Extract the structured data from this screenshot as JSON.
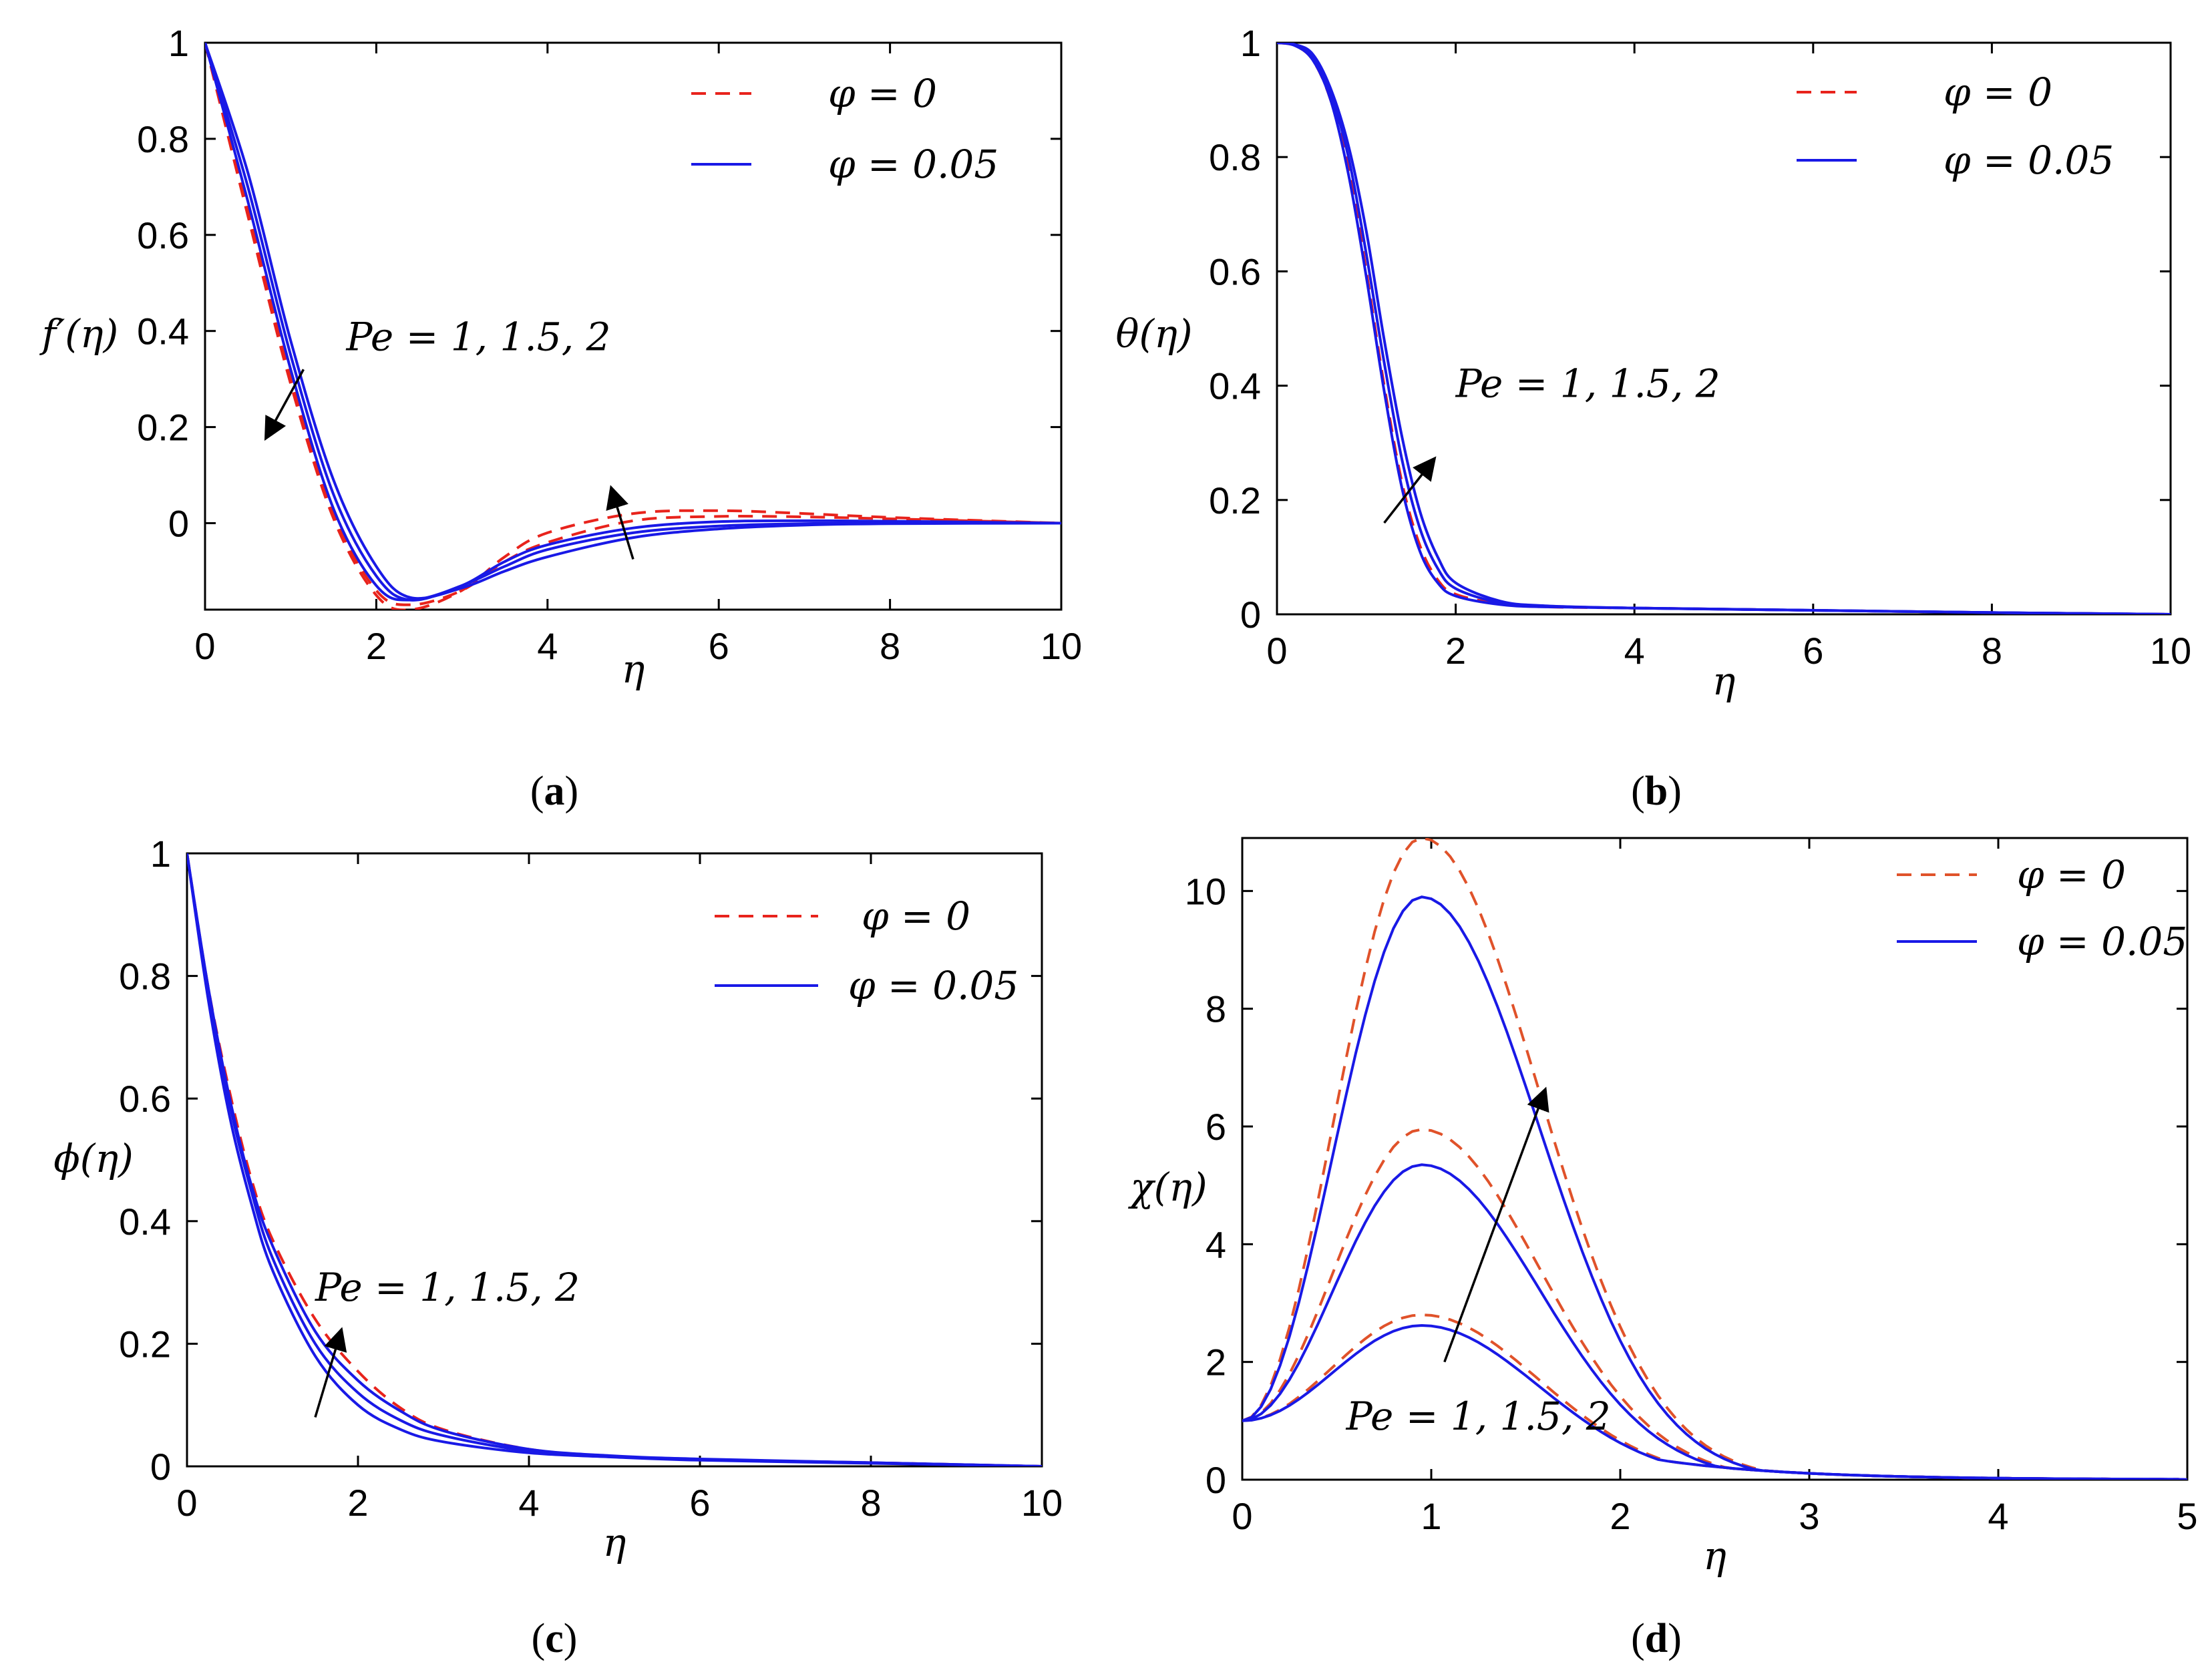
{
  "colors": {
    "red": "#e8231c",
    "orange": "#e0522a",
    "blue": "#1919e6",
    "black": "#000000"
  },
  "chart_data": [
    {
      "id": "a",
      "type": "line",
      "panel_label": [
        "(",
        "a",
        ")"
      ],
      "xlabel": "η",
      "ylabel": "f′(η)",
      "xlim": [
        0,
        10
      ],
      "ylim": [
        -0.18,
        1
      ],
      "xticks": [
        0,
        2,
        4,
        6,
        8,
        10
      ],
      "yticks": [
        0,
        0.2,
        0.4,
        0.6,
        0.8,
        1
      ],
      "xtick_labels": [
        "0",
        "2",
        "4",
        "6",
        "8",
        "10"
      ],
      "ytick_labels": [
        "0",
        "0.2",
        "0.4",
        "0.6",
        "0.8",
        "1"
      ],
      "legend": [
        {
          "label": "φ = 0",
          "style": "dashed",
          "color": "red"
        },
        {
          "label": "φ = 0.05",
          "style": "solid",
          "color": "blue"
        }
      ],
      "annotation": "Pe = 1, 1.5, 2",
      "series": [
        {
          "name": "φ = 0, Pe = 1",
          "style": "dashed",
          "color": "red",
          "x": [
            0,
            0.5,
            1,
            1.5,
            2,
            2.4,
            3,
            3.5,
            4,
            5,
            6,
            7,
            8,
            10
          ],
          "y": [
            1,
            0.64,
            0.29,
            0.01,
            -0.15,
            -0.18,
            -0.14,
            -0.07,
            -0.02,
            0.02,
            0.026,
            0.02,
            0.012,
            0
          ]
        },
        {
          "name": "φ = 0, Pe = 1.5",
          "style": "dashed",
          "color": "red",
          "x": [
            0,
            0.5,
            1,
            1.5,
            2,
            2.4,
            3,
            3.5,
            4,
            5,
            6,
            7,
            8,
            10
          ],
          "y": [
            1,
            0.65,
            0.3,
            0.02,
            -0.14,
            -0.17,
            -0.14,
            -0.08,
            -0.04,
            0.005,
            0.014,
            0.013,
            0.009,
            0
          ]
        },
        {
          "name": "φ = 0.05, Pe = 1",
          "style": "solid",
          "color": "blue",
          "x": [
            0,
            0.5,
            1,
            1.5,
            2,
            2.4,
            3,
            3.5,
            4,
            5,
            6,
            7,
            8,
            10
          ],
          "y": [
            1,
            0.67,
            0.32,
            0.03,
            -0.13,
            -0.16,
            -0.13,
            -0.08,
            -0.045,
            -0.01,
            0.003,
            0.005,
            0.004,
            0
          ]
        },
        {
          "name": "φ = 0.05, Pe = 1.5",
          "style": "solid",
          "color": "blue",
          "x": [
            0,
            0.5,
            1,
            1.5,
            2,
            2.4,
            3,
            3.5,
            4,
            5,
            6,
            7,
            8,
            10
          ],
          "y": [
            1,
            0.7,
            0.35,
            0.06,
            -0.11,
            -0.16,
            -0.13,
            -0.09,
            -0.055,
            -0.02,
            -0.006,
            -0.001,
            0,
            0
          ]
        },
        {
          "name": "φ = 0.05, Pe = 2",
          "style": "solid",
          "color": "blue",
          "x": [
            0,
            0.5,
            1,
            1.5,
            2,
            2.4,
            3,
            3.5,
            4,
            5,
            6,
            7,
            8,
            10
          ],
          "y": [
            1,
            0.73,
            0.38,
            0.09,
            -0.09,
            -0.155,
            -0.135,
            -0.1,
            -0.07,
            -0.03,
            -0.012,
            -0.004,
            -0.001,
            0
          ]
        }
      ],
      "arrows": [
        {
          "x1": 1.15,
          "y1": 0.32,
          "x2": 0.72,
          "y2": 0.18
        },
        {
          "x1": 5.0,
          "y1": -0.075,
          "x2": 4.75,
          "y2": 0.07
        }
      ],
      "annotation_pos": [
        1.65,
        0.36
      ]
    },
    {
      "id": "b",
      "type": "line",
      "panel_label": [
        "(",
        "b",
        ")"
      ],
      "xlabel": "η",
      "ylabel": "θ(η)",
      "xlim": [
        0,
        10
      ],
      "ylim": [
        0,
        1
      ],
      "xticks": [
        0,
        2,
        4,
        6,
        8,
        10
      ],
      "yticks": [
        0,
        0.2,
        0.4,
        0.6,
        0.8,
        1
      ],
      "xtick_labels": [
        "0",
        "2",
        "4",
        "6",
        "8",
        "10"
      ],
      "ytick_labels": [
        "0",
        "0.2",
        "0.4",
        "0.6",
        "0.8",
        "1"
      ],
      "legend": [
        {
          "label": "φ = 0",
          "style": "dashed",
          "color": "red"
        },
        {
          "label": "φ = 0.05",
          "style": "solid",
          "color": "blue"
        }
      ],
      "annotation": "Pe = 1, 1.5, 2",
      "series": [
        {
          "name": "φ = 0, Pe = 1",
          "style": "dashed",
          "color": "red",
          "x": [
            0,
            0.2,
            0.4,
            0.6,
            0.8,
            1,
            1.2,
            1.4,
            1.6,
            1.8,
            2,
            2.5,
            3,
            4,
            6,
            8,
            10
          ],
          "y": [
            1,
            0.995,
            0.97,
            0.9,
            0.78,
            0.6,
            0.4,
            0.23,
            0.12,
            0.06,
            0.035,
            0.018,
            0.013,
            0.011,
            0.007,
            0.003,
            0
          ]
        },
        {
          "name": "φ = 0.05, Pe = 1",
          "style": "solid",
          "color": "blue",
          "x": [
            0,
            0.2,
            0.4,
            0.6,
            0.8,
            1,
            1.2,
            1.4,
            1.6,
            1.8,
            2,
            2.5,
            3,
            4,
            6,
            8,
            10
          ],
          "y": [
            1,
            0.995,
            0.97,
            0.9,
            0.77,
            0.59,
            0.39,
            0.22,
            0.11,
            0.055,
            0.032,
            0.017,
            0.013,
            0.011,
            0.007,
            0.003,
            0
          ]
        },
        {
          "name": "φ = 0.05, Pe = 1.5",
          "style": "solid",
          "color": "blue",
          "x": [
            0,
            0.2,
            0.4,
            0.6,
            0.8,
            1,
            1.2,
            1.4,
            1.6,
            1.8,
            2,
            2.5,
            3,
            4,
            6,
            8,
            10
          ],
          "y": [
            1,
            0.996,
            0.975,
            0.91,
            0.8,
            0.63,
            0.44,
            0.27,
            0.15,
            0.08,
            0.045,
            0.02,
            0.014,
            0.011,
            0.007,
            0.003,
            0
          ]
        },
        {
          "name": "φ = 0.05, Pe = 2",
          "style": "solid",
          "color": "blue",
          "x": [
            0,
            0.2,
            0.4,
            0.6,
            0.8,
            1,
            1.2,
            1.4,
            1.6,
            1.8,
            2,
            2.5,
            3,
            4,
            6,
            8,
            10
          ],
          "y": [
            1,
            0.997,
            0.98,
            0.92,
            0.82,
            0.67,
            0.48,
            0.31,
            0.18,
            0.1,
            0.055,
            0.023,
            0.015,
            0.011,
            0.007,
            0.003,
            0
          ]
        }
      ],
      "arrows": [
        {
          "x1": 1.2,
          "y1": 0.16,
          "x2": 1.75,
          "y2": 0.27
        }
      ],
      "annotation_pos": [
        2.0,
        0.38
      ]
    },
    {
      "id": "c",
      "type": "line",
      "panel_label": [
        "(",
        "c",
        ")"
      ],
      "xlabel": "η",
      "ylabel": "ϕ(η)",
      "xlim": [
        0,
        10
      ],
      "ylim": [
        0,
        1
      ],
      "xticks": [
        0,
        2,
        4,
        6,
        8,
        10
      ],
      "yticks": [
        0,
        0.2,
        0.4,
        0.6,
        0.8,
        1
      ],
      "xtick_labels": [
        "0",
        "2",
        "4",
        "6",
        "8",
        "10"
      ],
      "ytick_labels": [
        "0",
        "0.2",
        "0.4",
        "0.6",
        "0.8",
        "1"
      ],
      "legend": [
        {
          "label": "φ = 0",
          "style": "dashed",
          "color": "red"
        },
        {
          "label": "φ = 0.05",
          "style": "solid",
          "color": "blue"
        }
      ],
      "annotation": "Pe = 1, 1.5, 2",
      "series": [
        {
          "name": "φ = 0, Pe = 2",
          "style": "dashed",
          "color": "red",
          "x": [
            0,
            0.25,
            0.5,
            0.75,
            1,
            1.5,
            2,
            2.5,
            3,
            4,
            5,
            6,
            8,
            10
          ],
          "y": [
            1,
            0.78,
            0.61,
            0.47,
            0.37,
            0.24,
            0.155,
            0.095,
            0.06,
            0.028,
            0.016,
            0.011,
            0.006,
            0
          ]
        },
        {
          "name": "φ = 0.05, Pe = 1",
          "style": "solid",
          "color": "blue",
          "x": [
            0,
            0.25,
            0.5,
            0.75,
            1,
            1.5,
            2,
            2.5,
            3,
            4,
            5,
            6,
            8,
            10
          ],
          "y": [
            1,
            0.76,
            0.57,
            0.43,
            0.32,
            0.18,
            0.1,
            0.06,
            0.04,
            0.022,
            0.015,
            0.01,
            0.005,
            0
          ]
        },
        {
          "name": "φ = 0.05, Pe = 1.5",
          "style": "solid",
          "color": "blue",
          "x": [
            0,
            0.25,
            0.5,
            0.75,
            1,
            1.5,
            2,
            2.5,
            3,
            4,
            5,
            6,
            8,
            10
          ],
          "y": [
            1,
            0.77,
            0.59,
            0.45,
            0.34,
            0.2,
            0.12,
            0.075,
            0.05,
            0.025,
            0.016,
            0.011,
            0.006,
            0
          ]
        },
        {
          "name": "φ = 0.05, Pe = 2",
          "style": "solid",
          "color": "blue",
          "x": [
            0,
            0.25,
            0.5,
            0.75,
            1,
            1.5,
            2,
            2.5,
            3,
            4,
            5,
            6,
            8,
            10
          ],
          "y": [
            1,
            0.78,
            0.6,
            0.46,
            0.36,
            0.22,
            0.14,
            0.09,
            0.058,
            0.028,
            0.017,
            0.012,
            0.006,
            0
          ]
        }
      ],
      "arrows": [
        {
          "x1": 1.5,
          "y1": 0.08,
          "x2": 1.8,
          "y2": 0.22
        }
      ],
      "annotation_pos": [
        1.5,
        0.27
      ]
    },
    {
      "id": "d",
      "type": "line",
      "panel_label": [
        "(",
        "d",
        ")"
      ],
      "xlabel": "η",
      "ylabel": "χ(η)",
      "xlim": [
        0,
        5
      ],
      "ylim": [
        0,
        10.9
      ],
      "xticks": [
        0,
        1,
        2,
        3,
        4,
        5
      ],
      "yticks": [
        0,
        2,
        4,
        6,
        8,
        10
      ],
      "xtick_labels": [
        "0",
        "1",
        "2",
        "3",
        "4",
        "5"
      ],
      "ytick_labels": [
        "0",
        "2",
        "4",
        "6",
        "8",
        "10"
      ],
      "legend": [
        {
          "label": "φ = 0",
          "style": "dashed",
          "color": "orange"
        },
        {
          "label": "φ = 0.05",
          "style": "solid",
          "color": "blue"
        }
      ],
      "annotation": "Pe = 1, 1.5, 2",
      "series": [
        {
          "name": "φ = 0, Pe = 1",
          "style": "dashed",
          "color": "orange",
          "peak": 2.8
        },
        {
          "name": "φ = 0, Pe = 1.5",
          "style": "dashed",
          "color": "orange",
          "peak": 5.95
        },
        {
          "name": "φ = 0, Pe = 2",
          "style": "dashed",
          "color": "orange",
          "peak": 10.9
        },
        {
          "name": "φ = 0.05, Pe = 1",
          "style": "solid",
          "color": "blue",
          "peak": 2.62
        },
        {
          "name": "φ = 0.05, Pe = 1.5",
          "style": "solid",
          "color": "blue",
          "peak": 5.35
        },
        {
          "name": "φ = 0.05, Pe = 2",
          "style": "solid",
          "color": "blue",
          "peak": 9.9
        }
      ],
      "arrows": [
        {
          "x1": 1.07,
          "y1": 2.0,
          "x2": 1.6,
          "y2": 6.6
        }
      ],
      "annotation_pos": [
        0.55,
        0.85
      ]
    }
  ]
}
